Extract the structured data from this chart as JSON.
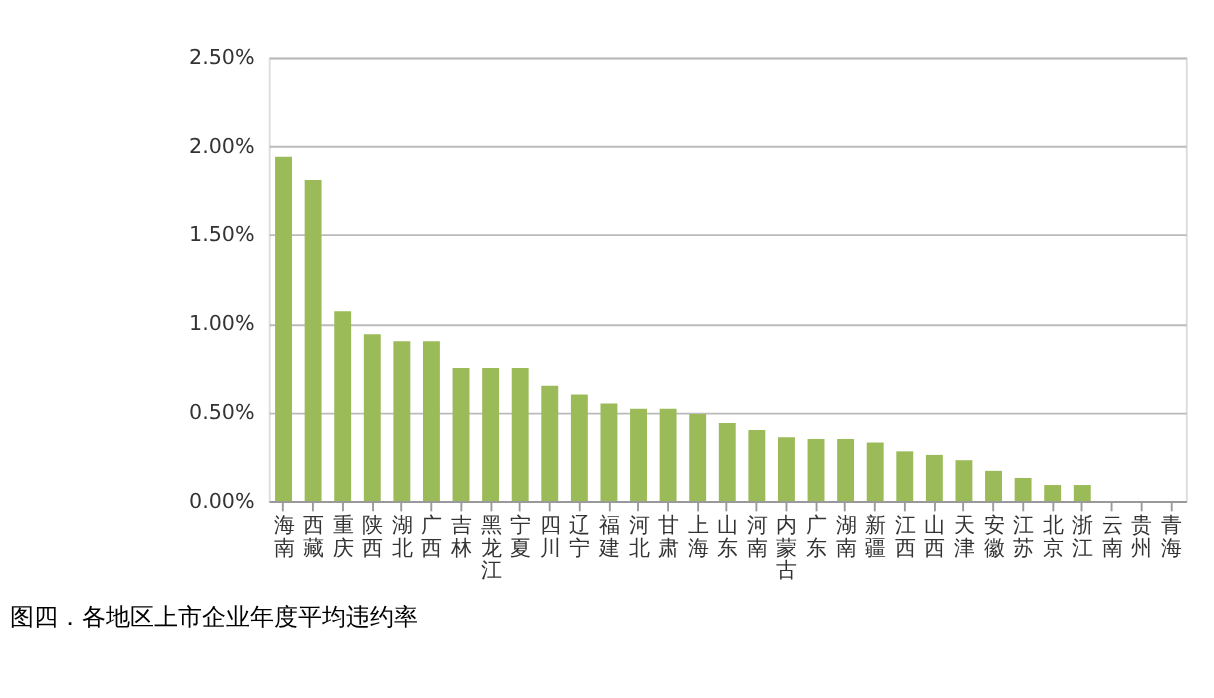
{
  "chart_data": {
    "type": "bar",
    "annotations": [
      "图四．各地区上市企业年度平均违约率"
    ],
    "categories": [
      "海南",
      "西藏",
      "重庆",
      "陕西",
      "湖北",
      "广西",
      "吉林",
      "黑龙江",
      "宁夏",
      "四川",
      "辽宁",
      "福建",
      "河北",
      "甘肃",
      "上海",
      "山东",
      "河南",
      "内蒙古",
      "广东",
      "湖南",
      "新疆",
      "江西",
      "山西",
      "天津",
      "安徽",
      "江苏",
      "北京",
      "浙江",
      "云南",
      "贵州",
      "青海"
    ],
    "values": [
      1.94,
      1.81,
      1.07,
      0.94,
      0.9,
      0.9,
      0.75,
      0.75,
      0.75,
      0.65,
      0.6,
      0.55,
      0.52,
      0.52,
      0.49,
      0.44,
      0.4,
      0.36,
      0.35,
      0.35,
      0.33,
      0.28,
      0.26,
      0.23,
      0.17,
      0.13,
      0.09,
      0.09,
      0,
      0,
      0
    ],
    "color": "#9bbb59",
    "ylim": [
      0,
      2.5
    ],
    "yticks": [
      {
        "value": 0,
        "label": "0.00%"
      },
      {
        "value": 0.5,
        "label": "0.50%"
      },
      {
        "value": 1,
        "label": "1.00%"
      },
      {
        "value": 1.5,
        "label": "1.50%"
      },
      {
        "value": 2,
        "label": "2.00%"
      },
      {
        "value": 2.5,
        "label": "2.50%"
      }
    ],
    "grid": "y"
  }
}
